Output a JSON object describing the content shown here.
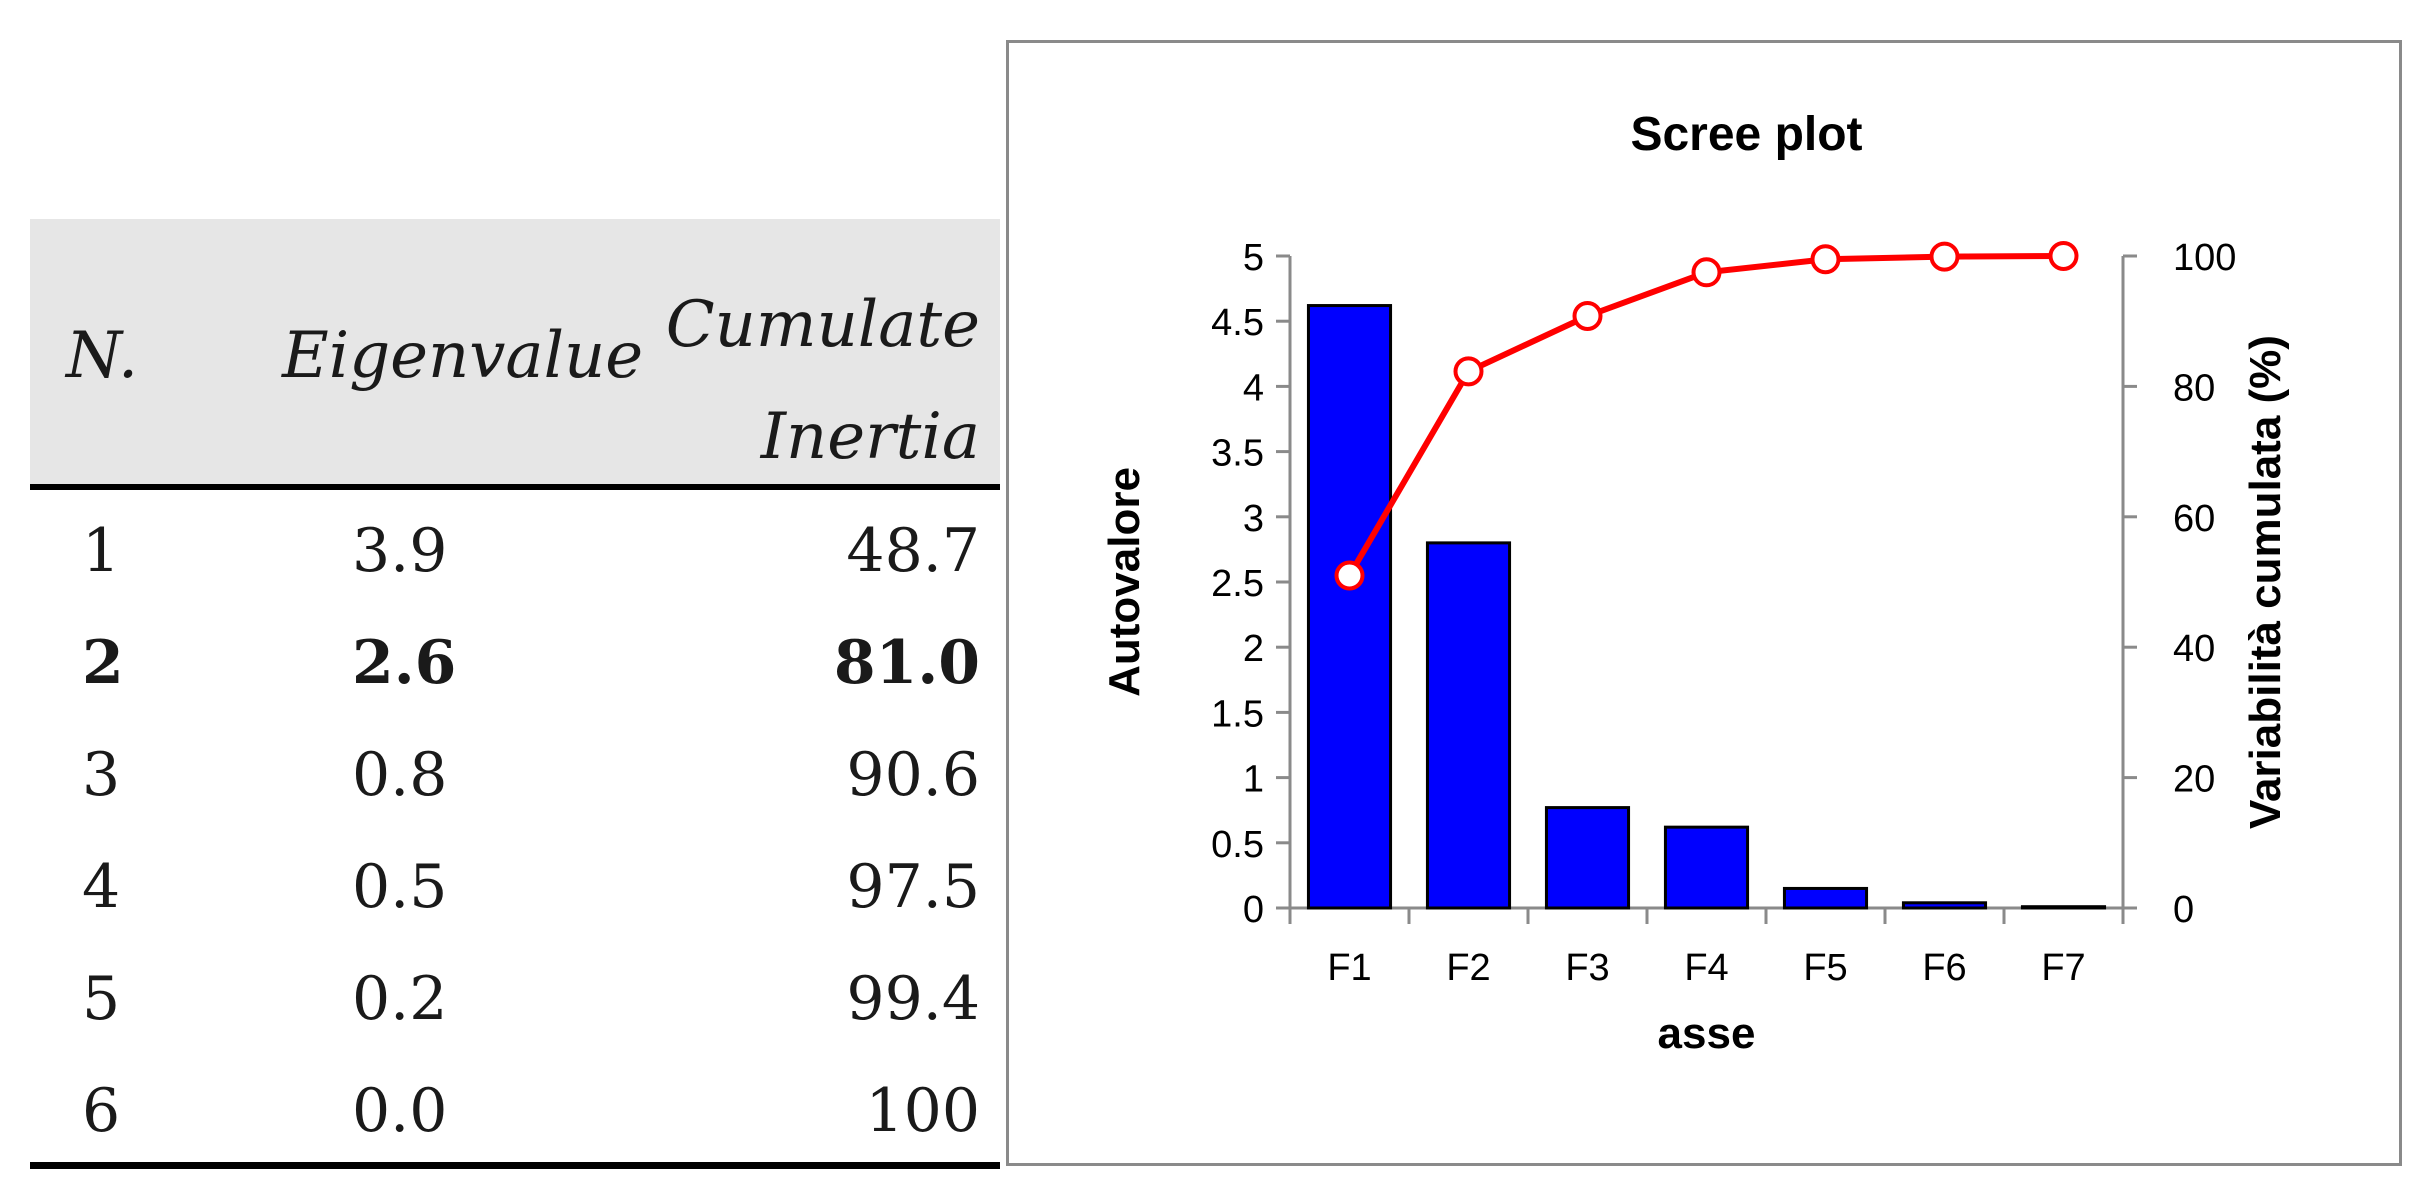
{
  "table": {
    "headers": {
      "n": "N.",
      "eigenvalue": "Eigenvalue",
      "cumulate_line1": "Cumulate",
      "cumulate_line2": "Inertia"
    },
    "rows": [
      {
        "n": "1",
        "eigenvalue": "3.9",
        "cumulate": "48.7",
        "bold": false
      },
      {
        "n": "2",
        "eigenvalue": "2.6",
        "cumulate": "81.0",
        "bold": true
      },
      {
        "n": "3",
        "eigenvalue": "0.8",
        "cumulate": "90.6",
        "bold": false
      },
      {
        "n": "4",
        "eigenvalue": "0.5",
        "cumulate": "97.5",
        "bold": false
      },
      {
        "n": "5",
        "eigenvalue": "0.2",
        "cumulate": "99.4",
        "bold": false
      },
      {
        "n": "6",
        "eigenvalue": "0.0",
        "cumulate": "100",
        "bold": false
      }
    ]
  },
  "chart_data": {
    "type": "bar",
    "title": "Scree plot",
    "xlabel": "asse",
    "ylabel": "Autovalore",
    "y2label": "Variabilità cumulata (%)",
    "categories": [
      "F1",
      "F2",
      "F3",
      "F4",
      "F5",
      "F6",
      "F7"
    ],
    "ylim": [
      0,
      5
    ],
    "yticks": [
      "0",
      "0.5",
      "1",
      "1.5",
      "2",
      "2.5",
      "3",
      "3.5",
      "4",
      "4.5",
      "5"
    ],
    "y2lim": [
      0,
      100
    ],
    "y2ticks": [
      "0",
      "20",
      "40",
      "60",
      "80",
      "100"
    ],
    "series": [
      {
        "type": "bar",
        "axis": "left",
        "color": "#0000ff",
        "values": [
          4.62,
          2.8,
          0.77,
          0.62,
          0.15,
          0.04,
          0.01
        ]
      },
      {
        "type": "line",
        "axis": "right",
        "color": "#ff0000",
        "values": [
          51,
          82.3,
          90.8,
          97.5,
          99.5,
          99.9,
          100
        ]
      }
    ],
    "grid": false
  }
}
